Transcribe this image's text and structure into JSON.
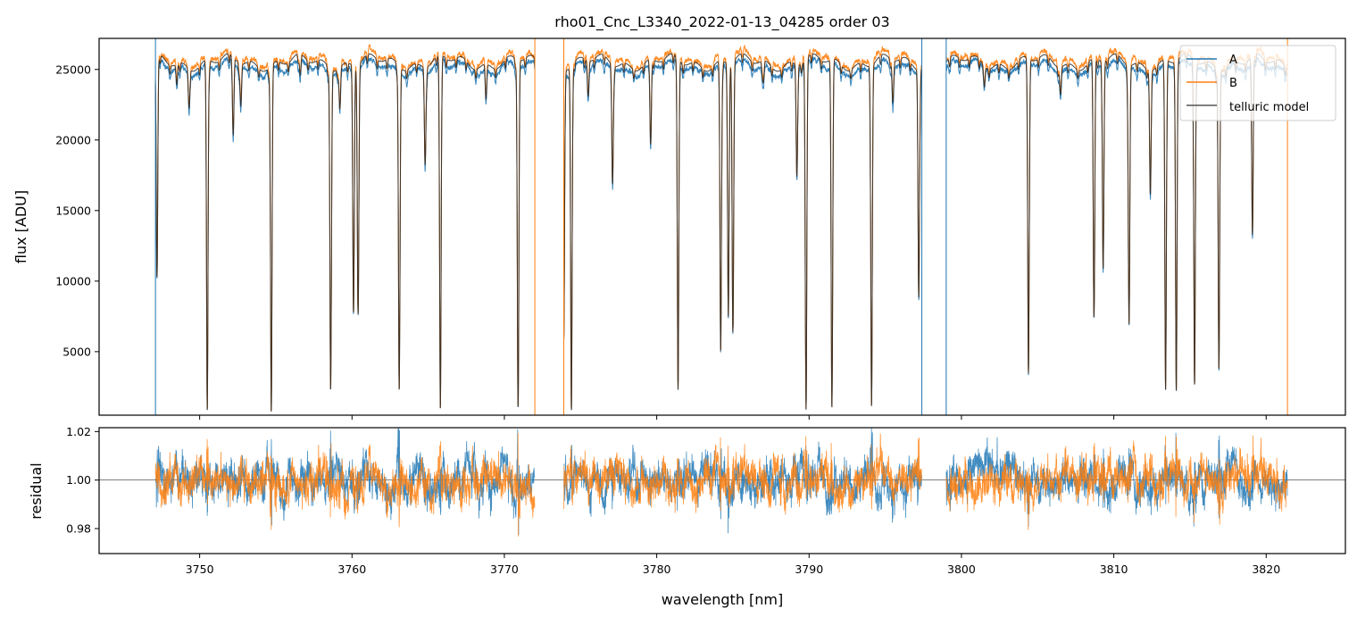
{
  "chart_data": [
    {
      "type": "line",
      "title": "rho01_Cnc_L3340_2022-01-13_04285  order 03",
      "xlabel": "",
      "ylabel": "flux [ADU]",
      "xlim": [
        3743.4,
        3825.2
      ],
      "ylim": [
        500,
        27200
      ],
      "xticks": [
        3750,
        3760,
        3770,
        3780,
        3790,
        3800,
        3810,
        3820
      ],
      "yticks": [
        5000,
        10000,
        15000,
        20000,
        25000
      ],
      "ytick_labels": [
        "5000",
        "10000",
        "15000",
        "20000",
        "25000"
      ],
      "legend": {
        "placement": "top-right",
        "entries": [
          "A",
          "B",
          "telluric model"
        ]
      },
      "segments_nm": [
        [
          3747.1,
          3772.0
        ],
        [
          3773.9,
          3797.4
        ],
        [
          3799.0,
          3821.4
        ]
      ],
      "continuum_adu": 25500,
      "absorption_lines": [
        {
          "nm": 3747.2,
          "min_adu": 10000
        },
        {
          "nm": 3748.5,
          "min_adu": 24000
        },
        {
          "nm": 3749.3,
          "min_adu": 23000
        },
        {
          "nm": 3750.5,
          "min_adu": 800
        },
        {
          "nm": 3752.2,
          "min_adu": 20000
        },
        {
          "nm": 3752.7,
          "min_adu": 22500
        },
        {
          "nm": 3754.7,
          "min_adu": 700
        },
        {
          "nm": 3756.6,
          "min_adu": 24000
        },
        {
          "nm": 3758.6,
          "min_adu": 2300
        },
        {
          "nm": 3759.2,
          "min_adu": 22500
        },
        {
          "nm": 3760.1,
          "min_adu": 7800
        },
        {
          "nm": 3760.4,
          "min_adu": 7800
        },
        {
          "nm": 3763.1,
          "min_adu": 2300
        },
        {
          "nm": 3764.8,
          "min_adu": 18500
        },
        {
          "nm": 3765.8,
          "min_adu": 900
        },
        {
          "nm": 3768.8,
          "min_adu": 23500
        },
        {
          "nm": 3770.9,
          "min_adu": 1000
        },
        {
          "nm": 3773.9,
          "min_adu": 6000
        },
        {
          "nm": 3774.4,
          "min_adu": 800
        },
        {
          "nm": 3775.5,
          "min_adu": 23000
        },
        {
          "nm": 3777.1,
          "min_adu": 17000
        },
        {
          "nm": 3779.6,
          "min_adu": 19500
        },
        {
          "nm": 3781.4,
          "min_adu": 2300
        },
        {
          "nm": 3784.2,
          "min_adu": 5000
        },
        {
          "nm": 3784.7,
          "min_adu": 7500
        },
        {
          "nm": 3785.0,
          "min_adu": 6500
        },
        {
          "nm": 3787.0,
          "min_adu": 24000
        },
        {
          "nm": 3789.2,
          "min_adu": 17500
        },
        {
          "nm": 3789.8,
          "min_adu": 900
        },
        {
          "nm": 3791.5,
          "min_adu": 1000
        },
        {
          "nm": 3794.1,
          "min_adu": 1100
        },
        {
          "nm": 3795.5,
          "min_adu": 22500
        },
        {
          "nm": 3797.2,
          "min_adu": 9000
        },
        {
          "nm": 3801.5,
          "min_adu": 24000
        },
        {
          "nm": 3804.4,
          "min_adu": 3500
        },
        {
          "nm": 3806.5,
          "min_adu": 23500
        },
        {
          "nm": 3808.7,
          "min_adu": 7300
        },
        {
          "nm": 3809.3,
          "min_adu": 10800
        },
        {
          "nm": 3811.0,
          "min_adu": 7000
        },
        {
          "nm": 3812.4,
          "min_adu": 16500
        },
        {
          "nm": 3813.4,
          "min_adu": 2300
        },
        {
          "nm": 3814.1,
          "min_adu": 2200
        },
        {
          "nm": 3815.3,
          "min_adu": 2600
        },
        {
          "nm": 3816.9,
          "min_adu": 3800
        },
        {
          "nm": 3819.1,
          "min_adu": 13000
        }
      ],
      "series": [
        {
          "name": "A",
          "color": "#1f77b4",
          "scale": 0.985
        },
        {
          "name": "B",
          "color": "#ff7f0e",
          "scale": 1.01
        },
        {
          "name": "telluric model",
          "color": "#222222",
          "scale": 1.0
        }
      ]
    },
    {
      "type": "line",
      "title": "",
      "xlabel": "wavelength [nm]",
      "ylabel": "residual",
      "xlim": [
        3743.4,
        3825.2
      ],
      "ylim": [
        0.9697,
        1.0216
      ],
      "xticks": [
        3750,
        3760,
        3770,
        3780,
        3790,
        3800,
        3810,
        3820
      ],
      "xtick_labels": [
        "3750",
        "3760",
        "3770",
        "3780",
        "3790",
        "3800",
        "3810",
        "3820"
      ],
      "yticks": [
        0.98,
        1.0,
        1.02
      ],
      "ytick_labels": [
        "0.98",
        "1.00",
        "1.02"
      ],
      "reference_line": 1.0,
      "noise_sigma": 0.006,
      "series": [
        {
          "name": "A",
          "color": "#1f77b4"
        },
        {
          "name": "B",
          "color": "#ff7f0e"
        }
      ]
    }
  ]
}
